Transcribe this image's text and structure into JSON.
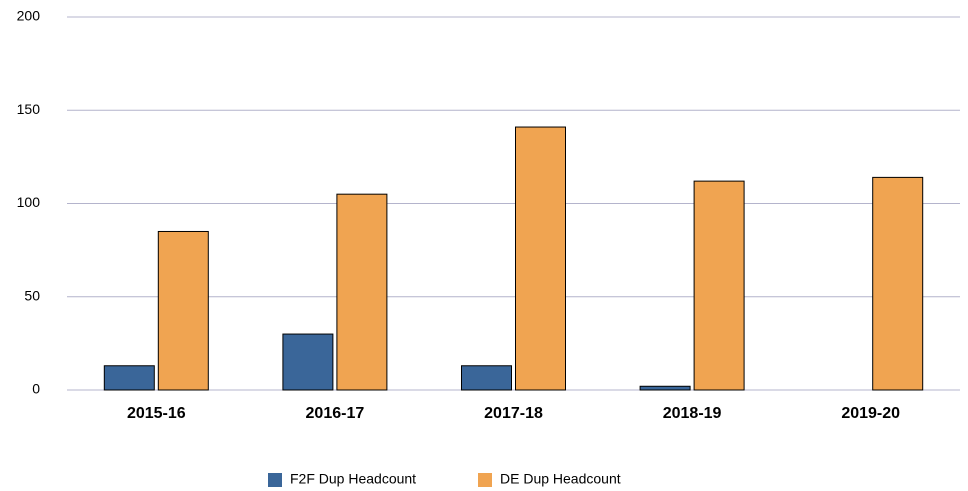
{
  "chart_data": {
    "type": "bar",
    "categories": [
      "2015-16",
      "2016-17",
      "2017-18",
      "2018-19",
      "2019-20"
    ],
    "series": [
      {
        "name": "F2F Dup Headcount",
        "color": "#3a6699",
        "values": [
          13,
          30,
          13,
          2,
          0
        ]
      },
      {
        "name": "DE Dup Headcount",
        "color": "#f0a451",
        "values": [
          85,
          105,
          141,
          112,
          114
        ]
      }
    ],
    "ylim": [
      0,
      200
    ],
    "yticks": [
      0,
      50,
      100,
      150,
      200
    ],
    "grid": true,
    "legend": "bottom"
  }
}
